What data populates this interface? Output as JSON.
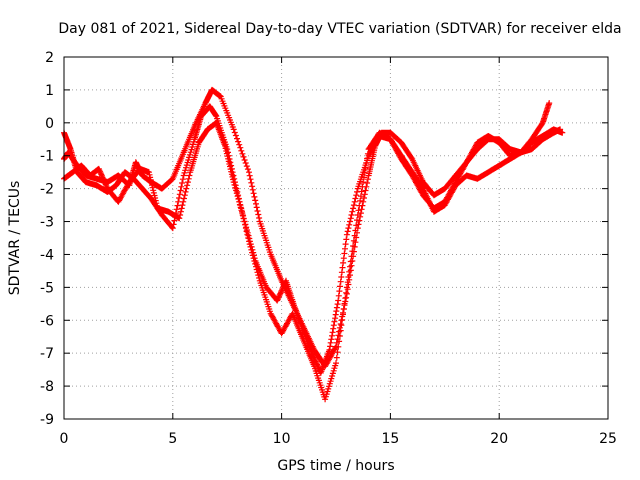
{
  "chart_data": {
    "type": "scatter",
    "title": "Day 081 of 2021, Sidereal Day-to-day VTEC variation (SDTVAR) for receiver elda",
    "xlabel": "GPS time / hours",
    "ylabel": "SDTVAR / TECUs",
    "xlim": [
      0,
      25
    ],
    "ylim": [
      -9,
      2
    ],
    "xticks": [
      "0",
      "5",
      "10",
      "15",
      "20",
      "25"
    ],
    "yticks": [
      "2",
      "1",
      "0",
      "-1",
      "-2",
      "-3",
      "-4",
      "-5",
      "-6",
      "-7",
      "-8",
      "-9"
    ],
    "grid": true,
    "marker": "plus",
    "color": "#ff0000",
    "series": [
      {
        "x": [
          0.0,
          0.2,
          0.5,
          1.0,
          1.5,
          2.0,
          2.5,
          3.0,
          3.3,
          3.6,
          4.0,
          4.5,
          5.0,
          5.5,
          6.0,
          6.5,
          6.8,
          7.2,
          7.8,
          8.5,
          9.0,
          9.5,
          10.0,
          10.5,
          11.0,
          11.5,
          12.0,
          12.5,
          13.0,
          13.5,
          14.0,
          14.3,
          14.6,
          15.0,
          15.5,
          16.0,
          16.5,
          17.0,
          17.5,
          18.0,
          18.5,
          19.0,
          19.5,
          20.0,
          20.5,
          21.0,
          21.5,
          22.0,
          22.5,
          22.8
        ],
        "y": [
          -1.1,
          -0.9,
          -1.2,
          -1.6,
          -1.7,
          -1.8,
          -1.6,
          -1.9,
          -1.2,
          -1.6,
          -1.8,
          -2.0,
          -1.7,
          -0.9,
          -0.1,
          0.6,
          1.0,
          0.8,
          -0.2,
          -1.5,
          -3.0,
          -4.0,
          -4.8,
          -5.5,
          -6.2,
          -6.9,
          -7.4,
          -6.8,
          -5.2,
          -3.2,
          -1.6,
          -0.7,
          -0.3,
          -0.3,
          -0.6,
          -1.1,
          -1.8,
          -2.2,
          -2.0,
          -1.6,
          -1.2,
          -0.8,
          -0.5,
          -0.5,
          -0.8,
          -0.9,
          -0.8,
          -0.5,
          -0.3,
          -0.2
        ]
      },
      {
        "x": [
          0.0,
          0.3,
          0.6,
          1.0,
          1.5,
          2.0,
          2.4,
          2.8,
          3.2,
          3.6,
          4.0,
          4.5,
          5.0,
          5.5,
          6.0,
          6.3,
          6.7,
          7.0,
          7.5,
          8.0,
          8.5,
          9.0,
          9.5,
          10.0,
          10.5,
          11.0,
          11.5,
          12.0,
          12.5,
          13.0,
          13.5,
          14.0,
          14.5,
          15.0,
          15.5,
          16.0,
          16.5,
          17.0,
          17.5,
          18.0,
          18.5,
          19.0,
          19.5,
          20.0,
          20.5,
          21.0,
          21.5,
          22.0,
          22.5,
          22.9
        ],
        "y": [
          -0.3,
          -0.8,
          -1.5,
          -1.8,
          -1.9,
          -2.1,
          -1.9,
          -1.5,
          -1.7,
          -2.0,
          -2.3,
          -2.8,
          -3.2,
          -1.6,
          -0.5,
          0.2,
          0.5,
          0.2,
          -0.8,
          -2.2,
          -3.6,
          -4.8,
          -5.8,
          -6.4,
          -5.8,
          -6.6,
          -7.4,
          -8.4,
          -7.3,
          -5.0,
          -2.8,
          -0.8,
          -0.3,
          -0.5,
          -1.1,
          -1.6,
          -2.2,
          -2.6,
          -2.4,
          -1.8,
          -1.2,
          -0.6,
          -0.4,
          -0.6,
          -1.0,
          -0.9,
          -0.6,
          -0.4,
          -0.2,
          -0.3
        ]
      },
      {
        "x": [
          0.0,
          0.4,
          0.8,
          1.2,
          1.6,
          2.0,
          2.5,
          3.0,
          3.5,
          3.9,
          4.3,
          4.8,
          5.3,
          5.8,
          6.2,
          6.6,
          7.0,
          7.4,
          7.8,
          8.3,
          8.8,
          9.3,
          9.8,
          10.2,
          10.6,
          11.0,
          11.4,
          11.8,
          12.2,
          12.6,
          13.0,
          13.5,
          14.0,
          14.5,
          15.0,
          15.5,
          16.0,
          16.5,
          17.0,
          17.5,
          18.0,
          18.5,
          19.0,
          19.5,
          20.0,
          20.5,
          21.0,
          21.5,
          22.0,
          22.3
        ],
        "y": [
          -1.7,
          -1.5,
          -1.3,
          -1.6,
          -1.4,
          -2.0,
          -2.4,
          -1.8,
          -1.4,
          -1.5,
          -2.6,
          -2.7,
          -2.9,
          -1.5,
          -0.6,
          -0.2,
          0.0,
          -0.7,
          -1.8,
          -3.0,
          -4.2,
          -5.0,
          -5.4,
          -4.8,
          -5.6,
          -6.3,
          -7.0,
          -7.6,
          -6.9,
          -5.4,
          -3.4,
          -2.0,
          -1.0,
          -0.4,
          -0.5,
          -1.0,
          -1.5,
          -2.0,
          -2.7,
          -2.5,
          -1.9,
          -1.6,
          -1.7,
          -1.5,
          -1.3,
          -1.1,
          -0.9,
          -0.5,
          0.0,
          0.6
        ]
      }
    ]
  }
}
